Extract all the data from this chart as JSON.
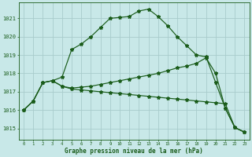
{
  "title": "Graphe pression niveau de la mer (hPa)",
  "background_color": "#c8e8e8",
  "grid_color": "#a8cccc",
  "line_color": "#1a5c1a",
  "x_ticks": [
    0,
    1,
    2,
    3,
    4,
    5,
    6,
    7,
    8,
    9,
    10,
    11,
    12,
    13,
    14,
    15,
    16,
    17,
    18,
    19,
    20,
    21,
    22,
    23
  ],
  "y_ticks": [
    1015,
    1016,
    1017,
    1018,
    1019,
    1020,
    1021
  ],
  "ylim": [
    1014.4,
    1021.85
  ],
  "xlim": [
    -0.5,
    23.5
  ],
  "series1": [
    1016.0,
    1016.5,
    1017.5,
    1017.6,
    1017.8,
    1019.3,
    1019.6,
    1020.0,
    1020.5,
    1021.0,
    1021.05,
    1021.1,
    1021.4,
    1021.5,
    1021.1,
    1020.6,
    1020.0,
    1019.5,
    1019.0,
    1018.9,
    1017.5,
    1016.1,
    1015.05,
    1014.8
  ],
  "series2": [
    1016.0,
    1016.5,
    1017.5,
    1017.6,
    1017.3,
    1017.15,
    1017.1,
    1017.05,
    1017.0,
    1016.95,
    1016.9,
    1016.85,
    1016.8,
    1016.75,
    1016.7,
    1016.65,
    1016.6,
    1016.55,
    1016.5,
    1016.45,
    1016.4,
    1016.35,
    1015.05,
    1014.8
  ],
  "series3": [
    1016.0,
    1016.5,
    1017.5,
    1017.6,
    1017.3,
    1017.2,
    1017.25,
    1017.3,
    1017.4,
    1017.5,
    1017.6,
    1017.7,
    1017.8,
    1017.9,
    1018.0,
    1018.15,
    1018.3,
    1018.4,
    1018.55,
    1018.85,
    1018.0,
    1016.1,
    1015.05,
    1014.8
  ]
}
